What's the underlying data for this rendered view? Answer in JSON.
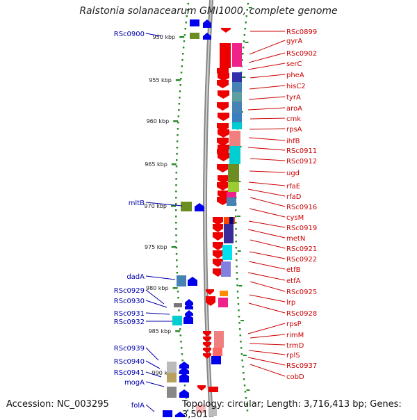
{
  "title": "Ralstonia solanacearum GMI1000, complete genome",
  "footer": {
    "accession": "Accession: NC_003295",
    "topology": "Topology: circular; Length: 3,716,413 bp; Genes: 3,501"
  },
  "colors": {
    "forward": "#0000ee",
    "reverse": "#ee0000",
    "left_label": "#0000aa",
    "right_label": "#cc0000",
    "ruler": "#2a8a2a"
  },
  "ruler_ticks": [
    "950 kbp",
    "955 kbp",
    "960 kbp",
    "965 kbp",
    "970 kbp",
    "975 kbp",
    "980 kbp",
    "985 kbp",
    "990 kbp"
  ],
  "left_labels": [
    "RSc0900",
    "mltB",
    "dadA",
    "RSc0929",
    "RSc0930",
    "RSc0931",
    "RSc0932",
    "RSc0939",
    "RSc0940",
    "RSc0941",
    "mogA",
    "folA"
  ],
  "right_labels": [
    "RSc0899",
    "gyrA",
    "RSc0902",
    "serC",
    "pheA",
    "hisC2",
    "tyrA",
    "aroA",
    "cmk",
    "rpsA",
    "ihfB",
    "RSc0911",
    "RSc0912",
    "ugd",
    "rfaE",
    "rfaD",
    "RSc0916",
    "cysM",
    "RSc0919",
    "metN",
    "RSc0921",
    "RSc0922",
    "etfB",
    "etfA",
    "RSc0925",
    "lrp",
    "RSc0928",
    "rpsP",
    "rimM",
    "trmD",
    "rplS",
    "RSc0937",
    "cobD"
  ]
}
